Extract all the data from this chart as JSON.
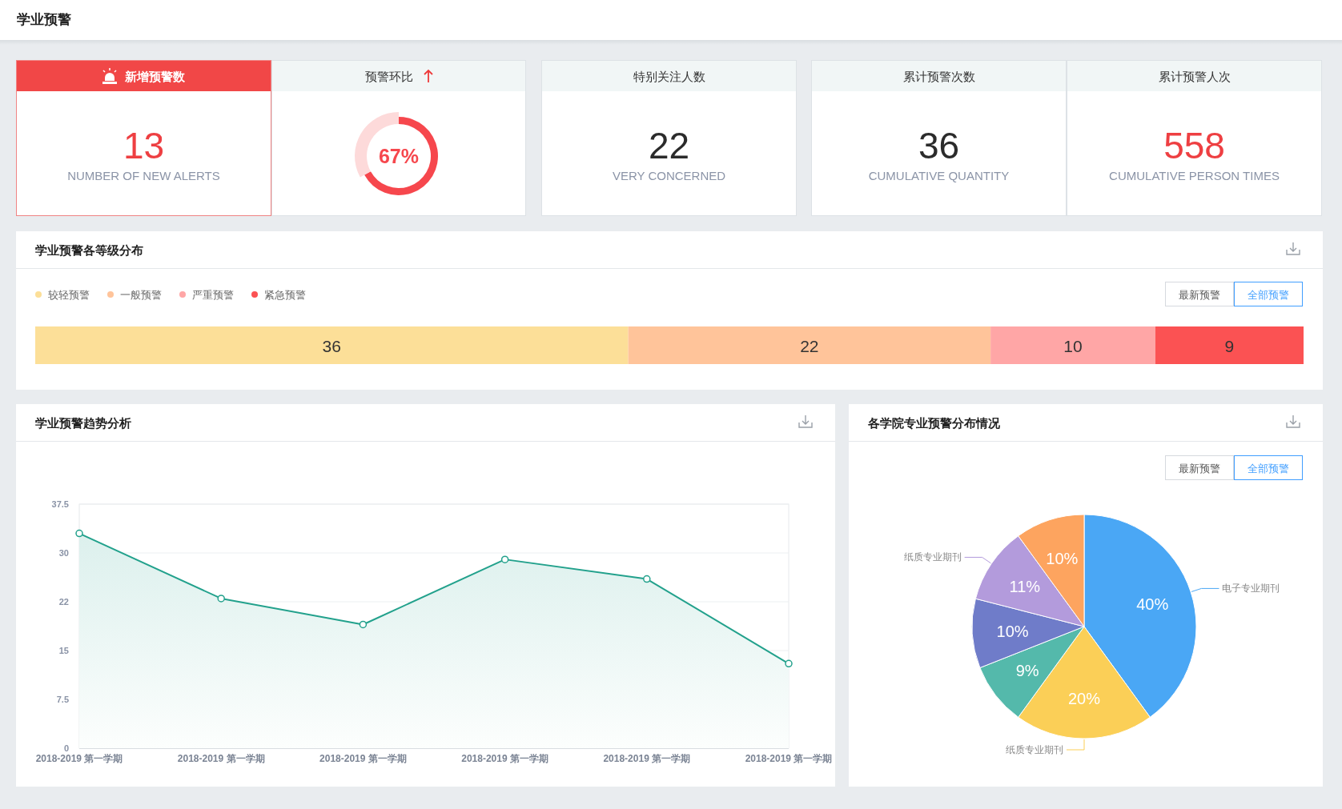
{
  "chart_data": [
    {
      "type": "other",
      "title": "学业预警"
    },
    {
      "type": "other",
      "title": "新增预警数",
      "annotations": [
        "13",
        "NUMBER OF NEW ALERTS"
      ]
    },
    {
      "type": "donut",
      "title": "预警环比",
      "categories": [
        null,
        null
      ],
      "values": [
        67,
        33
      ],
      "colors": [
        "#f6474d",
        "#fddada"
      ],
      "value_labels": [
        "67%",
        null
      ]
    },
    {
      "type": "other",
      "title": "特别关注人数",
      "annotations": [
        "22",
        "VERY CONCERNED"
      ]
    },
    {
      "type": "other",
      "title": "累计预警次数",
      "annotations": [
        "36",
        "CUMULATIVE QUANTITY"
      ]
    },
    {
      "type": "other",
      "title": "累计预警人次",
      "annotations": [
        "558",
        "CUMULATIVE PERSON TIMES"
      ]
    },
    {
      "type": "bar",
      "title": "学业预警各等级分布",
      "orientation": "horizontal",
      "stacked": true,
      "categories": [
        null
      ],
      "series": [
        {
          "name": "较轻预警",
          "color": "#fcdf98",
          "values": [
            36
          ]
        },
        {
          "name": "一般预警",
          "color": "#ffc49a",
          "values": [
            22
          ]
        },
        {
          "name": "严重预警",
          "color": "#ffa6a6",
          "values": [
            10
          ]
        },
        {
          "name": "紧急预警",
          "color": "#fb5253",
          "values": [
            9
          ]
        }
      ],
      "data_labels": true,
      "legend": "top left",
      "annotations": [
        "最新预警",
        "全部预警"
      ]
    },
    {
      "type": "area",
      "title": "学业预警趋势分析",
      "categories": [
        "2018-2019 第一学期",
        "2018-2019 第一学期",
        "2018-2019 第一学期",
        "2018-2019 第一学期",
        "2018-2019 第一学期",
        "2018-2019 第一学期"
      ],
      "series": [
        {
          "color": "#22a18c",
          "values": [
            33,
            23,
            19,
            29,
            26,
            13
          ]
        }
      ],
      "ylim": [
        0,
        37.5
      ],
      "yticks": [
        0,
        7.5,
        15,
        {
          "value": 22.5,
          "label": "22"
        },
        30,
        37.5
      ],
      "grid": "y",
      "marker": "circle"
    },
    {
      "type": "pie",
      "title": "各学院专业预警分布情况",
      "categories": [
        "电子专业期刊",
        "纸质专业期刊",
        null,
        null,
        "纸质专业期刊",
        null
      ],
      "values": [
        40,
        20,
        9,
        10,
        11,
        10
      ],
      "colors": [
        "#4aa7f5",
        "#fbcf57",
        "#54b9ab",
        "#6f7cc9",
        "#b39bdc",
        "#fda45f"
      ],
      "value_labels": [
        "40%",
        "20%",
        "9%",
        "10%",
        "11%",
        "10%"
      ],
      "annotations": [
        "最新预警",
        "全部预警"
      ]
    }
  ]
}
